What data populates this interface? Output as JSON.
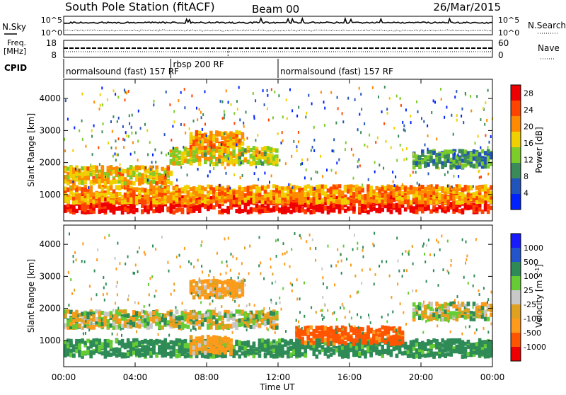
{
  "header": {
    "title": "South Pole Station (fitACF)",
    "beam": "Beam 00",
    "date": "26/Mar/2015"
  },
  "top_panels": {
    "nsky_label": "N.Sky",
    "nsearch_label": "N.Search",
    "nsky_ticks": [
      "10^5",
      "10^0"
    ],
    "nsearch_ticks": [
      "10^5",
      "10^0"
    ],
    "freq_label_line1": "Freq.",
    "freq_label_line2": "[MHz]",
    "freq_ticks": [
      "18",
      "8"
    ],
    "nave_label": "Nave",
    "nave_ticks": [
      "60",
      "0"
    ],
    "cpid_label": "CPID",
    "cpid_segments": [
      {
        "label": "normalsound (fast) 157 RF",
        "start_hour": 0,
        "end_hour": 6.0
      },
      {
        "label": "rbsp 200 RF",
        "start_hour": 6.0,
        "end_hour": 12.0
      },
      {
        "label": "normalsound (fast) 157 RF",
        "start_hour": 12.0,
        "end_hour": 24.0
      }
    ]
  },
  "x_axis": {
    "title": "Time UT",
    "ticks": [
      "00:00",
      "04:00",
      "08:00",
      "12:00",
      "16:00",
      "20:00",
      "00:00"
    ]
  },
  "y_axis_title": "Slant Range [km]",
  "colors": {
    "power": [
      "#0022ff",
      "#2255bb",
      "#3a8a5a",
      "#7ccc2a",
      "#f0d000",
      "#ff8a00",
      "#ff4400",
      "#ee0000"
    ],
    "velocity": [
      "#ee0000",
      "#ff5500",
      "#ff9a1a",
      "#e0a020",
      "#c8c8c8",
      "#66cc33",
      "#2e8b57",
      "#2255cc",
      "#1a1aff"
    ]
  },
  "chart_data": [
    {
      "type": "heatmap",
      "panel": "power",
      "xlabel": "Time UT",
      "ylabel": "Slant Range [km]",
      "xlim_hours": [
        0,
        24
      ],
      "ylim": [
        180,
        4600
      ],
      "yticks": [
        1000,
        2000,
        3000,
        4000
      ],
      "colorbar": {
        "label": "Power [dB]",
        "ticks": [
          4,
          8,
          12,
          16,
          20,
          24,
          28
        ],
        "range": [
          0,
          30
        ]
      },
      "bands": [
        {
          "t_start": 0,
          "t_end": 24,
          "range_center": 700,
          "value_db": 28
        },
        {
          "t_start": 0,
          "t_end": 24,
          "range_center": 1000,
          "value_db": 20
        },
        {
          "t_start": 0,
          "t_end": 6,
          "range_center": 1600,
          "value_db": 18
        },
        {
          "t_start": 6,
          "t_end": 12,
          "range_center": 2200,
          "value_db": 16
        },
        {
          "t_start": 7,
          "t_end": 10,
          "range_center": 2700,
          "value_db": 20
        },
        {
          "t_start": 19.5,
          "t_end": 24,
          "range_center": 2100,
          "value_db": 10
        }
      ]
    },
    {
      "type": "heatmap",
      "panel": "velocity",
      "xlabel": "Time UT",
      "ylabel": "Slant Range [km]",
      "xlim_hours": [
        0,
        24
      ],
      "ylim": [
        180,
        4600
      ],
      "yticks": [
        1000,
        2000,
        3000,
        4000
      ],
      "colorbar": {
        "label": "Velocity [m s^-1]",
        "ticks": [
          "1000",
          "500",
          "100",
          "25",
          "-25",
          "-100",
          "-500",
          "-1000"
        ]
      },
      "bands": [
        {
          "t_start": 0,
          "t_end": 24,
          "range_center": 750,
          "value_ms": 200
        },
        {
          "t_start": 0,
          "t_end": 12,
          "range_center": 1650,
          "value_ms": 0
        },
        {
          "t_start": 7,
          "t_end": 9.5,
          "range_center": 850,
          "value_ms": -150
        },
        {
          "t_start": 13,
          "t_end": 19,
          "range_center": 1150,
          "value_ms": -600
        },
        {
          "t_start": 7,
          "t_end": 10,
          "range_center": 2600,
          "value_ms": -150
        },
        {
          "t_start": 19.5,
          "t_end": 24,
          "range_center": 1900,
          "value_ms": 0
        }
      ]
    }
  ]
}
